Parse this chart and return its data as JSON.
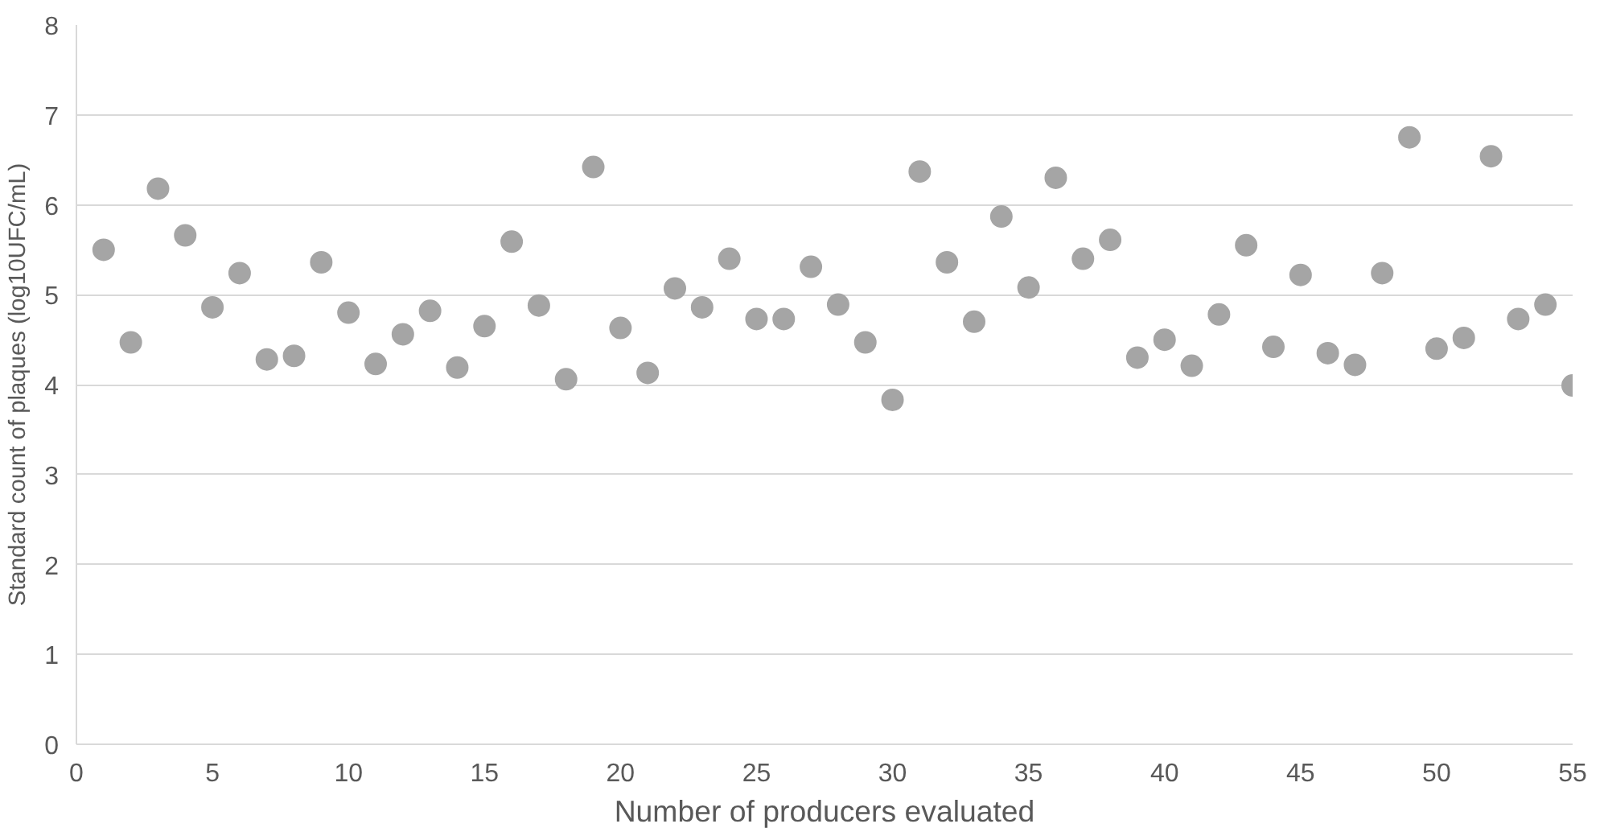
{
  "chart_data": {
    "type": "scatter",
    "xlabel": "Number of producers evaluated",
    "ylabel": "Standard count of plaques (log10UFC/mL)",
    "x": [
      1,
      2,
      3,
      4,
      5,
      6,
      7,
      8,
      9,
      10,
      11,
      12,
      13,
      14,
      15,
      16,
      17,
      18,
      19,
      20,
      21,
      22,
      23,
      24,
      25,
      26,
      27,
      28,
      29,
      30,
      31,
      32,
      33,
      34,
      35,
      36,
      37,
      38,
      39,
      40,
      41,
      42,
      43,
      44,
      45,
      46,
      47,
      48,
      49,
      50,
      51,
      52,
      53,
      54,
      55
    ],
    "series": [
      {
        "color": "#a5a5a5",
        "values": [
          5.5,
          4.47,
          6.18,
          5.66,
          4.86,
          5.24,
          4.28,
          4.32,
          5.36,
          4.8,
          4.23,
          4.56,
          4.82,
          4.19,
          4.65,
          5.59,
          4.88,
          4.06,
          6.42,
          4.63,
          4.13,
          5.07,
          4.86,
          5.4,
          4.73,
          4.73,
          5.31,
          4.89,
          4.47,
          3.83,
          6.37,
          5.36,
          4.7,
          5.87,
          5.08,
          6.3,
          5.4,
          5.61,
          4.3,
          4.5,
          4.21,
          4.78,
          5.55,
          4.42,
          5.22,
          4.35,
          4.22,
          5.24,
          6.75,
          4.4,
          4.52,
          6.54,
          4.73,
          4.89,
          3.99
        ]
      }
    ],
    "xlim": [
      0,
      55
    ],
    "xticks": [
      0,
      5,
      10,
      15,
      20,
      25,
      30,
      35,
      40,
      45,
      50,
      55
    ],
    "ylim": [
      0,
      8
    ],
    "yticks": [
      0,
      1,
      2,
      3,
      4,
      5,
      6,
      7,
      8
    ],
    "grid": "y",
    "marker": "circle"
  }
}
